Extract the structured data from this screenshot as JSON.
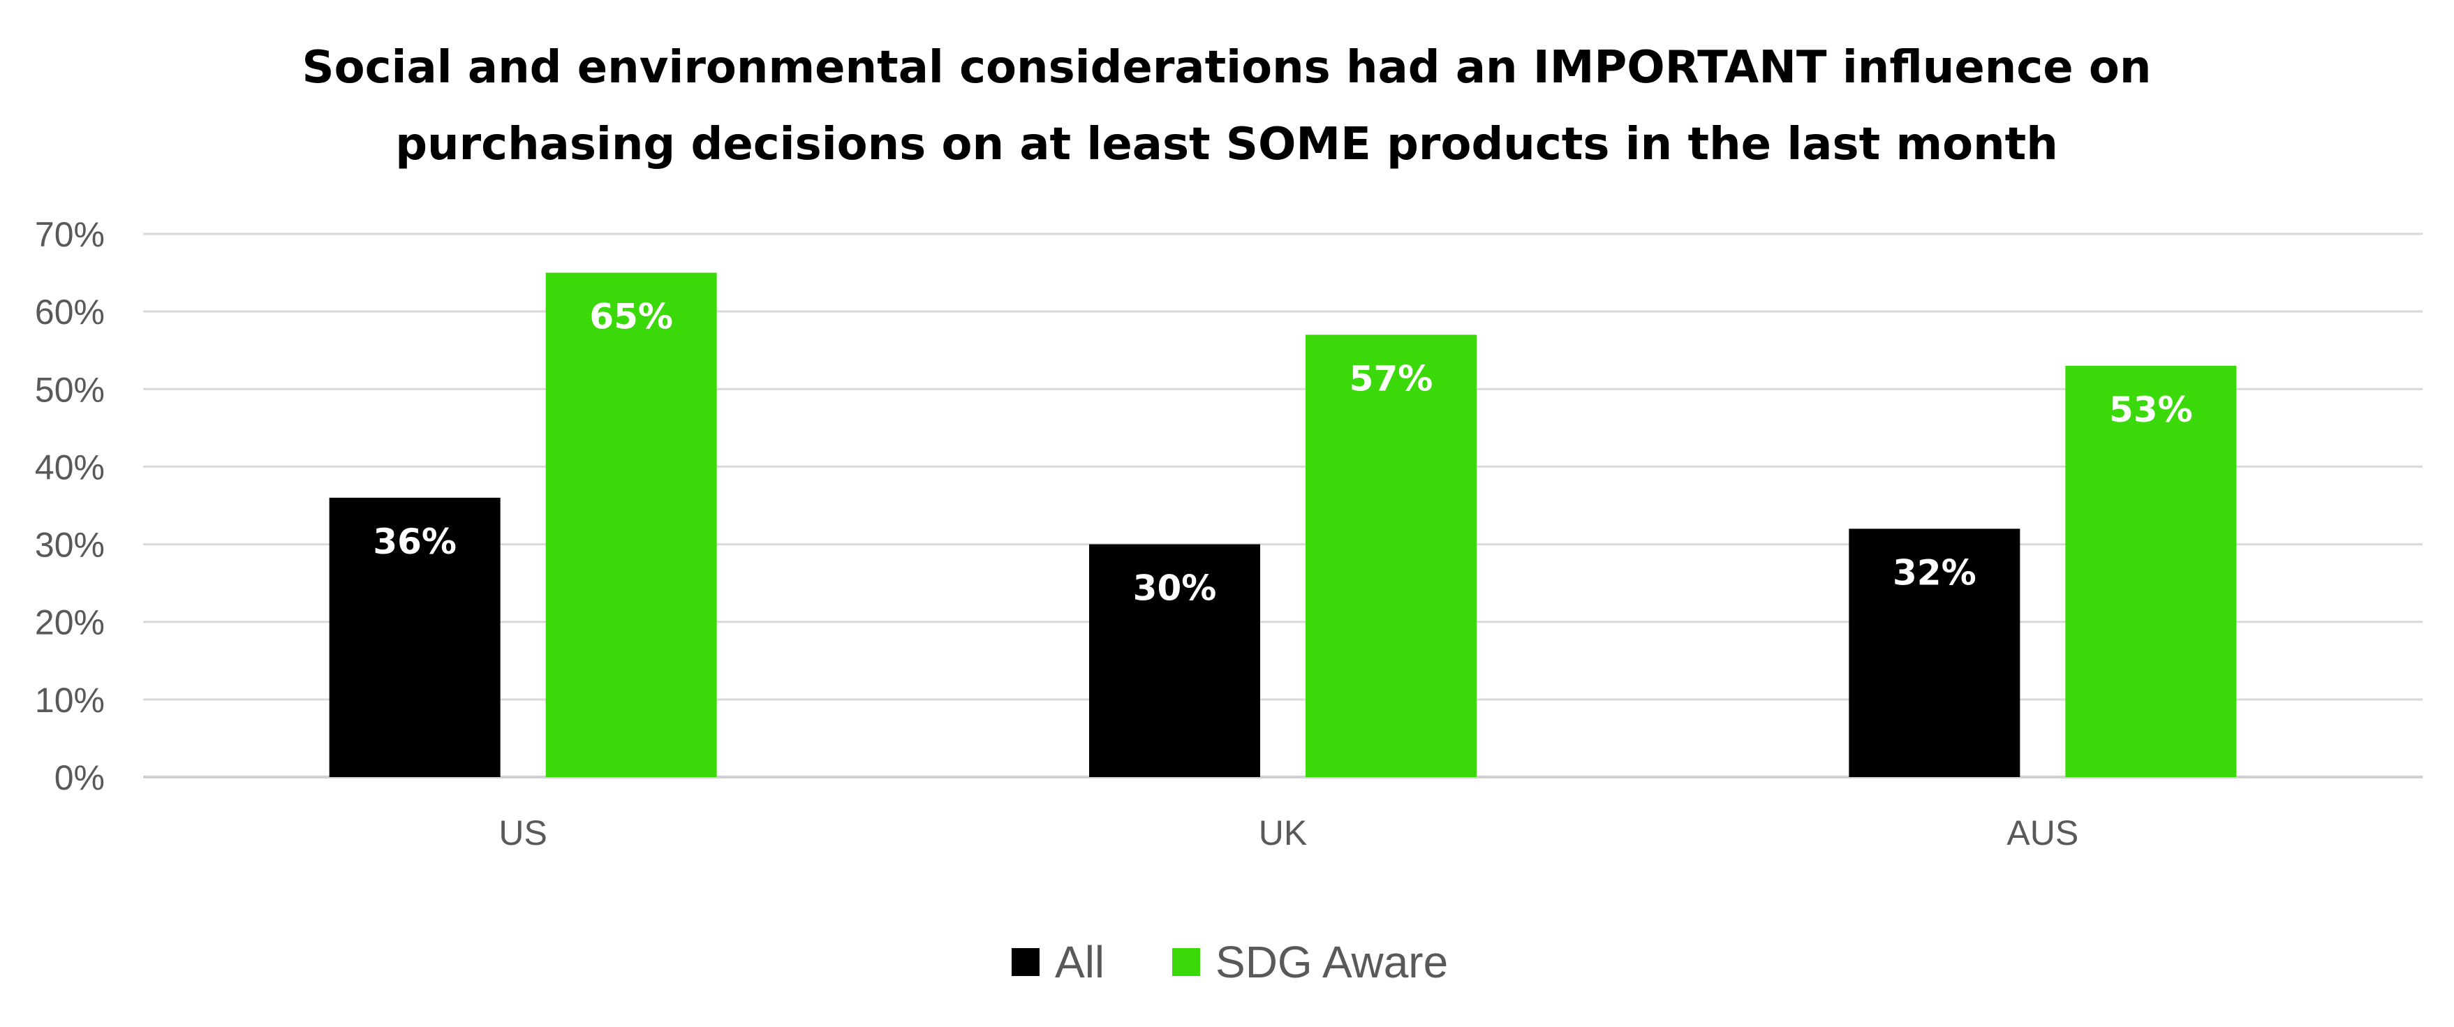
{
  "chart_data": {
    "type": "bar",
    "title_lines": [
      "Social and environmental considerations had an IMPORTANT influence on",
      "purchasing decisions on at least SOME products in the last month"
    ],
    "categories": [
      "US",
      "UK",
      "AUS"
    ],
    "series": [
      {
        "name": "All",
        "color": "#000000",
        "values": [
          36,
          30,
          32
        ],
        "labels": [
          "36%",
          "30%",
          "32%"
        ]
      },
      {
        "name": "SDG Aware",
        "color": "#3cd90a",
        "values": [
          65,
          57,
          53
        ],
        "labels": [
          "65%",
          "57%",
          "53%"
        ]
      }
    ],
    "y_ticks": [
      "0%",
      "10%",
      "20%",
      "30%",
      "40%",
      "50%",
      "60%",
      "70%"
    ],
    "ylim": [
      0,
      70
    ],
    "grid": true,
    "legend": "bottom-center",
    "xlabel": "",
    "ylabel": ""
  }
}
